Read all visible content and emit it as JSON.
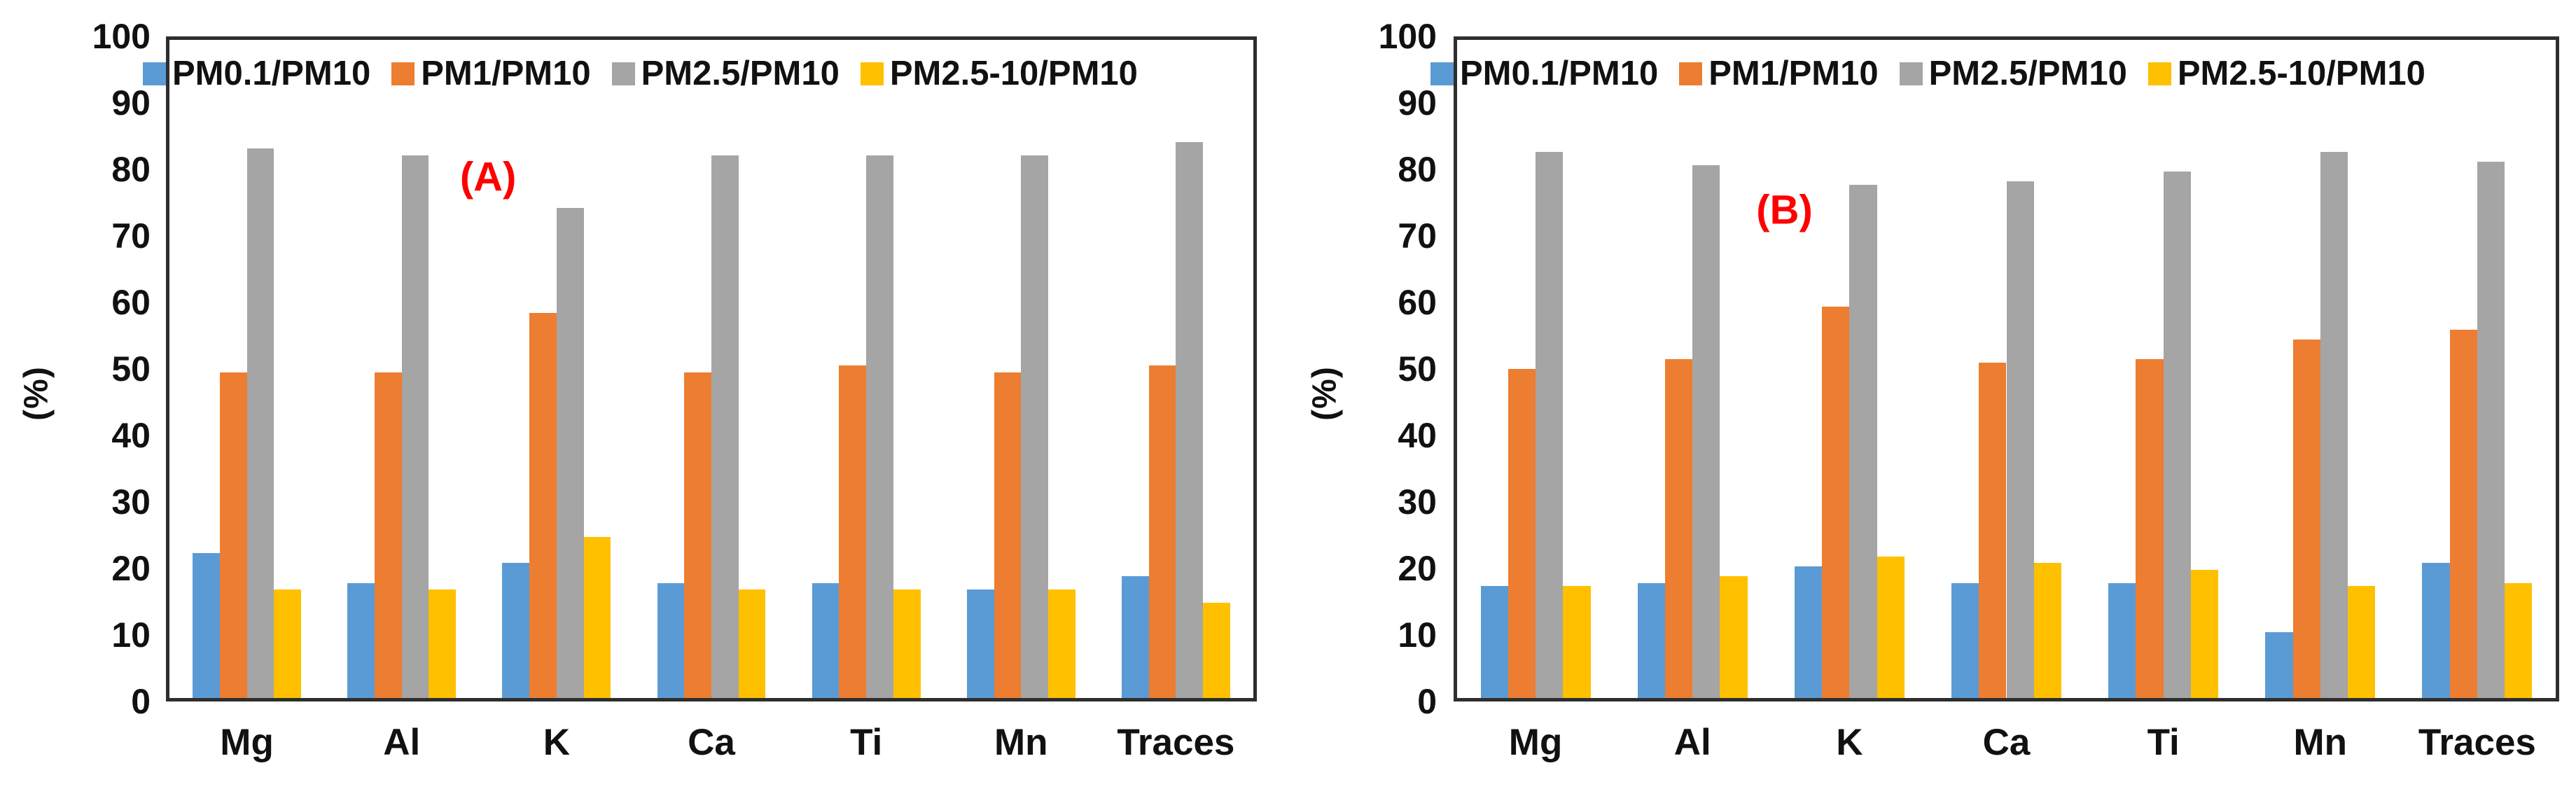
{
  "figure": {
    "background": "#ffffff",
    "frame_color": "#2e2e2e",
    "panel_label_color": "#ff0000"
  },
  "chart_data": [
    {
      "type": "bar",
      "panel_label": "(A)",
      "title": "",
      "xlabel": "",
      "ylabel": "(%)",
      "ylim": [
        0,
        100
      ],
      "yticks": [
        0,
        10,
        20,
        30,
        40,
        50,
        60,
        70,
        80,
        90,
        100
      ],
      "grid": false,
      "legend_position": "top-inside",
      "categories": [
        "Mg",
        "Al",
        "K",
        "Ca",
        "Ti",
        "Mn",
        "Traces"
      ],
      "series": [
        {
          "name": "PM0.1/PM10",
          "color": "#5B9BD5",
          "values": [
            22,
            17.5,
            20.5,
            17.5,
            17.5,
            16.5,
            18.5
          ]
        },
        {
          "name": "PM1/PM10",
          "color": "#ED7D31",
          "values": [
            49.5,
            49.5,
            58.5,
            49.5,
            50.5,
            49.5,
            50.5
          ]
        },
        {
          "name": "PM2.5/PM10",
          "color": "#A5A5A5",
          "values": [
            83.5,
            82.5,
            74.5,
            82.5,
            82.5,
            82.5,
            84.5
          ]
        },
        {
          "name": "PM2.5-10/PM10",
          "color": "#FFC000",
          "values": [
            16.5,
            16.5,
            24.5,
            16.5,
            16.5,
            16.5,
            14.5
          ]
        }
      ]
    },
    {
      "type": "bar",
      "panel_label": "(B)",
      "title": "",
      "xlabel": "",
      "ylabel": "(%)",
      "ylim": [
        0,
        100
      ],
      "yticks": [
        0,
        10,
        20,
        30,
        40,
        50,
        60,
        70,
        80,
        90,
        100
      ],
      "grid": false,
      "legend_position": "top-inside",
      "categories": [
        "Mg",
        "Al",
        "K",
        "Ca",
        "Ti",
        "Mn",
        "Traces"
      ],
      "series": [
        {
          "name": "PM0.1/PM10",
          "color": "#5B9BD5",
          "values": [
            17,
            17.5,
            20,
            17.5,
            17.5,
            10,
            20.5
          ]
        },
        {
          "name": "PM1/PM10",
          "color": "#ED7D31",
          "values": [
            50,
            51.5,
            59.5,
            51,
            51.5,
            54.5,
            56
          ]
        },
        {
          "name": "PM2.5/PM10",
          "color": "#A5A5A5",
          "values": [
            83,
            81,
            78,
            78.5,
            80,
            83,
            81.5
          ]
        },
        {
          "name": "PM2.5-10/PM10",
          "color": "#FFC000",
          "values": [
            17,
            18.5,
            21.5,
            20.5,
            19.5,
            17,
            17.5
          ]
        }
      ]
    }
  ]
}
